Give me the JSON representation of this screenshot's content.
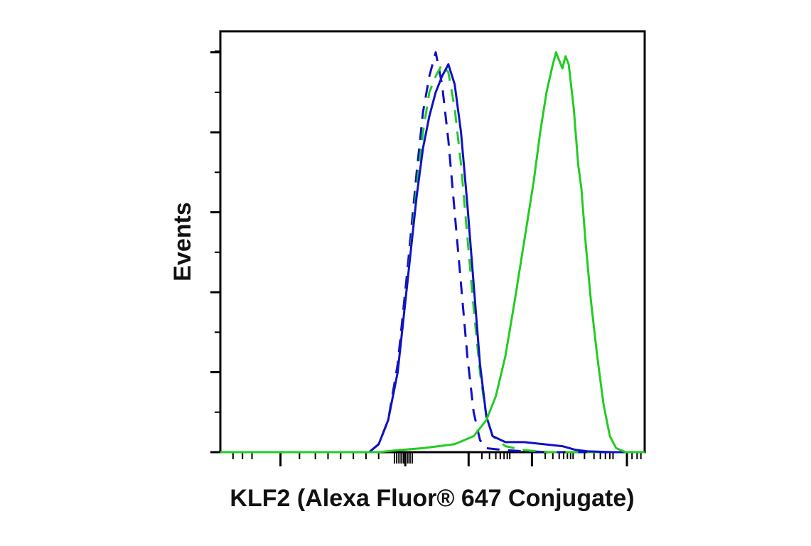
{
  "chart_data": {
    "type": "line",
    "title": "",
    "xlabel": "KLF2 (Alexa Fluor® 647 Conjugate)",
    "ylabel": "Events",
    "xscale": "log (biexponential)",
    "xlim": [
      -1.2,
      5.5
    ],
    "ylim": [
      0,
      100
    ],
    "grid": false,
    "legend": "none",
    "tick_labels_shown": false,
    "x_major_ticks": [
      0,
      3,
      4,
      5
    ],
    "y_major_ticks": [
      0,
      20,
      40,
      60,
      80,
      100
    ],
    "series": [
      {
        "color": "#1010c8",
        "style": "dashed",
        "points": [
          [
            -1.2,
            0
          ],
          [
            0.3,
            0
          ],
          [
            1.15,
            0
          ],
          [
            1.3,
            2
          ],
          [
            1.45,
            8
          ],
          [
            1.6,
            22
          ],
          [
            1.75,
            45
          ],
          [
            1.9,
            70
          ],
          [
            2.0,
            85
          ],
          [
            2.1,
            94
          ],
          [
            2.2,
            100
          ],
          [
            2.3,
            92
          ],
          [
            2.4,
            78
          ],
          [
            2.5,
            60
          ],
          [
            2.6,
            42
          ],
          [
            2.7,
            24
          ],
          [
            2.8,
            10
          ],
          [
            2.9,
            3
          ],
          [
            3.0,
            1
          ],
          [
            3.3,
            0.5
          ],
          [
            3.5,
            0.3
          ],
          [
            4.0,
            0
          ],
          [
            5.5,
            0
          ]
        ]
      },
      {
        "color": "#22cc22",
        "style": "dashed",
        "points": [
          [
            -1.2,
            0
          ],
          [
            0.3,
            0
          ],
          [
            1.15,
            0
          ],
          [
            1.3,
            2
          ],
          [
            1.45,
            8
          ],
          [
            1.6,
            20
          ],
          [
            1.75,
            42
          ],
          [
            1.9,
            66
          ],
          [
            2.0,
            80
          ],
          [
            2.1,
            90
          ],
          [
            2.2,
            94
          ],
          [
            2.3,
            97
          ],
          [
            2.4,
            95
          ],
          [
            2.5,
            86
          ],
          [
            2.6,
            72
          ],
          [
            2.7,
            54
          ],
          [
            2.8,
            36
          ],
          [
            2.9,
            20
          ],
          [
            3.0,
            9
          ],
          [
            3.1,
            4
          ],
          [
            3.3,
            1.5
          ],
          [
            3.6,
            0.5
          ],
          [
            4.0,
            0
          ],
          [
            5.5,
            0
          ]
        ]
      },
      {
        "color": "#1010c8",
        "style": "solid",
        "points": [
          [
            -1.2,
            0
          ],
          [
            0.3,
            0
          ],
          [
            1.15,
            0
          ],
          [
            1.3,
            2
          ],
          [
            1.45,
            8
          ],
          [
            1.6,
            20
          ],
          [
            1.75,
            42
          ],
          [
            1.9,
            64
          ],
          [
            2.0,
            76
          ],
          [
            2.1,
            84
          ],
          [
            2.2,
            90
          ],
          [
            2.3,
            94
          ],
          [
            2.4,
            97
          ],
          [
            2.5,
            92
          ],
          [
            2.6,
            80
          ],
          [
            2.7,
            62
          ],
          [
            2.8,
            42
          ],
          [
            2.9,
            22
          ],
          [
            3.0,
            9
          ],
          [
            3.1,
            4
          ],
          [
            3.3,
            2.5
          ],
          [
            3.6,
            2.5
          ],
          [
            3.9,
            2.0
          ],
          [
            4.2,
            1.5
          ],
          [
            4.4,
            0.6
          ],
          [
            4.6,
            0.2
          ],
          [
            5.0,
            0
          ],
          [
            5.5,
            0
          ]
        ]
      },
      {
        "color": "#22cc22",
        "style": "solid",
        "points": [
          [
            -1.2,
            0
          ],
          [
            0.3,
            0
          ],
          [
            1.3,
            0
          ],
          [
            1.6,
            0.5
          ],
          [
            2.0,
            1
          ],
          [
            2.5,
            2
          ],
          [
            2.8,
            4
          ],
          [
            3.0,
            8
          ],
          [
            3.15,
            14
          ],
          [
            3.3,
            24
          ],
          [
            3.45,
            38
          ],
          [
            3.55,
            48
          ],
          [
            3.65,
            58
          ],
          [
            3.75,
            68
          ],
          [
            3.85,
            80
          ],
          [
            3.95,
            90
          ],
          [
            4.05,
            97
          ],
          [
            4.1,
            100
          ],
          [
            4.15,
            98
          ],
          [
            4.2,
            96
          ],
          [
            4.25,
            99
          ],
          [
            4.3,
            97
          ],
          [
            4.38,
            86
          ],
          [
            4.45,
            72
          ],
          [
            4.5,
            66
          ],
          [
            4.57,
            52
          ],
          [
            4.65,
            38
          ],
          [
            4.75,
            24
          ],
          [
            4.85,
            12
          ],
          [
            4.95,
            4
          ],
          [
            5.05,
            1
          ],
          [
            5.2,
            0
          ],
          [
            5.5,
            0
          ]
        ]
      }
    ]
  }
}
